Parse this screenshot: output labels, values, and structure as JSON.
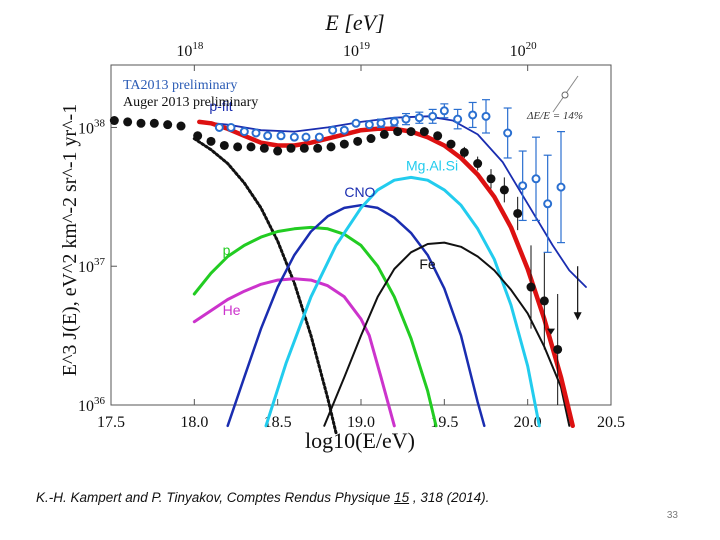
{
  "slide": {
    "citation_authors": "K.-H. Kampert and P. Tinyakov, Comptes Rendus Physique ",
    "citation_volume": "15",
    "citation_pages": " , 318 (2014).",
    "page_number": "33"
  },
  "chart_data": {
    "type": "line",
    "title": "",
    "xlabel": "log10(E/eV)",
    "ylabel": "E^3 J(E), eV^2 km^-2 sr^-1 yr^-1",
    "top_axis_label": "E [eV]",
    "xlim": [
      17.5,
      20.5
    ],
    "ylim_log10": [
      36,
      38.45
    ],
    "x_ticks": [
      "17.5",
      "18.0",
      "18.5",
      "19.0",
      "19.5",
      "20.0",
      "20.5"
    ],
    "y_ticks": [
      {
        "base": "10",
        "exp": "38"
      },
      {
        "base": "10",
        "exp": "37"
      },
      {
        "base": "10",
        "exp": "36"
      }
    ],
    "top_ticks": [
      {
        "base": "10",
        "exp": "18"
      },
      {
        "base": "10",
        "exp": "19"
      },
      {
        "base": "10",
        "exp": "20"
      }
    ],
    "legend": [
      {
        "label": "TA2013 preliminary",
        "color": "#2a5bb5"
      },
      {
        "label": "Auger 2013 preliminary",
        "color": "#111111"
      }
    ],
    "energy_scale_note": "ΔE/E = 14%",
    "colors": {
      "p": "#22cc22",
      "He": "#cc33cc",
      "CNO": "#1a2db0",
      "MgAlSi": "#22ccee",
      "Fe": "#111111",
      "total": "#dd1111",
      "pfit": "#1a2db0",
      "galactic": "#111111",
      "ta": "#2a6fd0",
      "auger": "#111111"
    },
    "series": [
      {
        "name": "p",
        "points": [
          [
            18.0,
            36.8
          ],
          [
            18.1,
            36.95
          ],
          [
            18.2,
            37.07
          ],
          [
            18.3,
            37.15
          ],
          [
            18.4,
            37.21
          ],
          [
            18.5,
            37.25
          ],
          [
            18.6,
            37.27
          ],
          [
            18.7,
            37.28
          ],
          [
            18.8,
            37.27
          ],
          [
            18.9,
            37.23
          ],
          [
            19.0,
            37.15
          ],
          [
            19.1,
            37.0
          ],
          [
            19.2,
            36.78
          ],
          [
            19.3,
            36.48
          ],
          [
            19.4,
            36.1
          ],
          [
            19.45,
            35.85
          ]
        ]
      },
      {
        "name": "He",
        "points": [
          [
            18.0,
            36.6
          ],
          [
            18.1,
            36.68
          ],
          [
            18.2,
            36.76
          ],
          [
            18.3,
            36.82
          ],
          [
            18.4,
            36.87
          ],
          [
            18.5,
            36.9
          ],
          [
            18.6,
            36.91
          ],
          [
            18.7,
            36.9
          ],
          [
            18.8,
            36.86
          ],
          [
            18.9,
            36.78
          ],
          [
            19.0,
            36.62
          ],
          [
            19.05,
            36.5
          ],
          [
            19.12,
            36.2
          ],
          [
            19.2,
            35.85
          ]
        ]
      },
      {
        "name": "CNO",
        "points": [
          [
            18.2,
            35.85
          ],
          [
            18.3,
            36.2
          ],
          [
            18.4,
            36.55
          ],
          [
            18.5,
            36.85
          ],
          [
            18.6,
            37.08
          ],
          [
            18.7,
            37.25
          ],
          [
            18.8,
            37.36
          ],
          [
            18.9,
            37.42
          ],
          [
            19.0,
            37.44
          ],
          [
            19.1,
            37.42
          ],
          [
            19.2,
            37.35
          ],
          [
            19.3,
            37.24
          ],
          [
            19.4,
            37.08
          ],
          [
            19.5,
            36.84
          ],
          [
            19.6,
            36.5
          ],
          [
            19.7,
            36.02
          ],
          [
            19.74,
            35.85
          ]
        ]
      },
      {
        "name": "MgAlSi",
        "points": [
          [
            18.43,
            35.85
          ],
          [
            18.55,
            36.3
          ],
          [
            18.7,
            36.78
          ],
          [
            18.85,
            37.15
          ],
          [
            19.0,
            37.42
          ],
          [
            19.1,
            37.55
          ],
          [
            19.2,
            37.62
          ],
          [
            19.3,
            37.64
          ],
          [
            19.4,
            37.62
          ],
          [
            19.5,
            37.55
          ],
          [
            19.6,
            37.44
          ],
          [
            19.7,
            37.27
          ],
          [
            19.8,
            37.05
          ],
          [
            19.9,
            36.72
          ],
          [
            20.0,
            36.28
          ],
          [
            20.07,
            35.85
          ]
        ]
      },
      {
        "name": "Fe",
        "points": [
          [
            18.78,
            35.85
          ],
          [
            18.9,
            36.2
          ],
          [
            19.0,
            36.5
          ],
          [
            19.1,
            36.78
          ],
          [
            19.2,
            36.98
          ],
          [
            19.3,
            37.1
          ],
          [
            19.4,
            37.16
          ],
          [
            19.5,
            37.17
          ],
          [
            19.6,
            37.14
          ],
          [
            19.7,
            37.07
          ],
          [
            19.8,
            36.97
          ],
          [
            19.9,
            36.83
          ],
          [
            20.0,
            36.66
          ],
          [
            20.1,
            36.42
          ],
          [
            20.2,
            36.13
          ],
          [
            20.25,
            35.85
          ]
        ]
      },
      {
        "name": "total",
        "points": [
          [
            18.03,
            38.04
          ],
          [
            18.1,
            38.03
          ],
          [
            18.2,
            37.99
          ],
          [
            18.3,
            37.94
          ],
          [
            18.4,
            37.89
          ],
          [
            18.5,
            37.87
          ],
          [
            18.6,
            37.87
          ],
          [
            18.7,
            37.89
          ],
          [
            18.8,
            37.92
          ],
          [
            18.9,
            37.95
          ],
          [
            19.0,
            37.98
          ],
          [
            19.1,
            37.99
          ],
          [
            19.2,
            37.99
          ],
          [
            19.3,
            37.97
          ],
          [
            19.4,
            37.93
          ],
          [
            19.5,
            37.87
          ],
          [
            19.6,
            37.78
          ],
          [
            19.7,
            37.66
          ],
          [
            19.8,
            37.5
          ],
          [
            19.9,
            37.28
          ],
          [
            20.0,
            36.98
          ],
          [
            20.1,
            36.62
          ],
          [
            20.2,
            36.2
          ],
          [
            20.27,
            35.85
          ]
        ]
      },
      {
        "name": "p-fit",
        "points": [
          [
            18.03,
            38.04
          ],
          [
            18.2,
            38.02
          ],
          [
            18.4,
            37.98
          ],
          [
            18.6,
            37.97
          ],
          [
            18.8,
            38.0
          ],
          [
            19.0,
            38.04
          ],
          [
            19.2,
            38.07
          ],
          [
            19.4,
            38.08
          ],
          [
            19.55,
            38.05
          ],
          [
            19.7,
            37.95
          ],
          [
            19.85,
            37.75
          ],
          [
            20.0,
            37.45
          ],
          [
            20.15,
            37.15
          ],
          [
            20.25,
            36.97
          ],
          [
            20.35,
            36.85
          ]
        ]
      },
      {
        "name": "galactic",
        "points": [
          [
            18.0,
            37.92
          ],
          [
            18.1,
            37.84
          ],
          [
            18.2,
            37.74
          ],
          [
            18.3,
            37.6
          ],
          [
            18.4,
            37.42
          ],
          [
            18.5,
            37.18
          ],
          [
            18.6,
            36.88
          ],
          [
            18.7,
            36.5
          ],
          [
            18.8,
            36.05
          ],
          [
            18.85,
            35.8
          ]
        ]
      }
    ],
    "ta_points": [
      [
        18.15,
        38.0
      ],
      [
        18.22,
        38.0
      ],
      [
        18.3,
        37.97
      ],
      [
        18.37,
        37.96
      ],
      [
        18.44,
        37.94
      ],
      [
        18.52,
        37.94
      ],
      [
        18.6,
        37.93
      ],
      [
        18.67,
        37.93
      ],
      [
        18.75,
        37.93
      ],
      [
        18.83,
        37.98
      ],
      [
        18.9,
        37.98
      ],
      [
        18.97,
        38.03
      ],
      [
        19.05,
        38.02
      ],
      [
        19.12,
        38.03
      ],
      [
        19.2,
        38.04
      ],
      [
        19.27,
        38.06
      ],
      [
        19.35,
        38.07
      ],
      [
        19.43,
        38.08
      ],
      [
        19.5,
        38.12
      ],
      [
        19.58,
        38.06
      ],
      [
        19.67,
        38.09
      ],
      [
        19.75,
        38.08
      ],
      [
        19.88,
        37.96
      ],
      [
        19.97,
        37.58
      ],
      [
        20.05,
        37.63
      ],
      [
        20.12,
        37.45
      ],
      [
        20.2,
        37.57
      ]
    ],
    "ta_errors": [
      0.02,
      0.02,
      0.02,
      0.02,
      0.02,
      0.02,
      0.02,
      0.02,
      0.02,
      0.02,
      0.02,
      0.02,
      0.02,
      0.03,
      0.03,
      0.04,
      0.04,
      0.05,
      0.05,
      0.07,
      0.09,
      0.12,
      0.18,
      0.25,
      0.3,
      0.35,
      0.4
    ],
    "auger_points": [
      [
        17.52,
        38.05
      ],
      [
        17.6,
        38.04
      ],
      [
        17.68,
        38.03
      ],
      [
        17.76,
        38.03
      ],
      [
        17.84,
        38.02
      ],
      [
        17.92,
        38.01
      ],
      [
        18.02,
        37.94
      ],
      [
        18.1,
        37.9
      ],
      [
        18.18,
        37.87
      ],
      [
        18.26,
        37.86
      ],
      [
        18.34,
        37.86
      ],
      [
        18.42,
        37.85
      ],
      [
        18.5,
        37.83
      ],
      [
        18.58,
        37.85
      ],
      [
        18.66,
        37.85
      ],
      [
        18.74,
        37.85
      ],
      [
        18.82,
        37.86
      ],
      [
        18.9,
        37.88
      ],
      [
        18.98,
        37.9
      ],
      [
        19.06,
        37.92
      ],
      [
        19.14,
        37.95
      ],
      [
        19.22,
        37.97
      ],
      [
        19.3,
        37.97
      ],
      [
        19.38,
        37.97
      ],
      [
        19.46,
        37.94
      ],
      [
        19.54,
        37.88
      ],
      [
        19.62,
        37.82
      ],
      [
        19.7,
        37.74
      ],
      [
        19.78,
        37.63
      ],
      [
        19.86,
        37.55
      ],
      [
        19.94,
        37.38
      ],
      [
        20.02,
        36.85
      ],
      [
        20.1,
        36.75
      ],
      [
        20.18,
        36.4
      ]
    ],
    "auger_errors": [
      0.02,
      0.02,
      0.02,
      0.02,
      0.02,
      0.02,
      0.02,
      0.02,
      0.02,
      0.02,
      0.02,
      0.02,
      0.02,
      0.02,
      0.02,
      0.02,
      0.02,
      0.02,
      0.02,
      0.02,
      0.02,
      0.02,
      0.02,
      0.03,
      0.03,
      0.03,
      0.04,
      0.05,
      0.07,
      0.09,
      0.12,
      0.3,
      0.35,
      0.4
    ],
    "ta_upper_limits": [
      [
        20.3,
        37.0
      ]
    ],
    "auger_upper_limits": [
      [
        20.14,
        36.55
      ]
    ],
    "labels": [
      {
        "text": "p-fit",
        "series": "pfit",
        "at": [
          18.09,
          38.12
        ]
      },
      {
        "text": "Mg.Al.Si",
        "series": "MgAlSi",
        "at": [
          19.27,
          37.69
        ]
      },
      {
        "text": "CNO",
        "series": "CNO",
        "at": [
          18.9,
          37.5
        ]
      },
      {
        "text": "p",
        "series": "p",
        "at": [
          18.17,
          37.08
        ]
      },
      {
        "text": "Fe",
        "series": "Fe",
        "at": [
          19.35,
          36.98
        ]
      },
      {
        "text": "He",
        "series": "He",
        "at": [
          18.17,
          36.65
        ]
      }
    ]
  }
}
